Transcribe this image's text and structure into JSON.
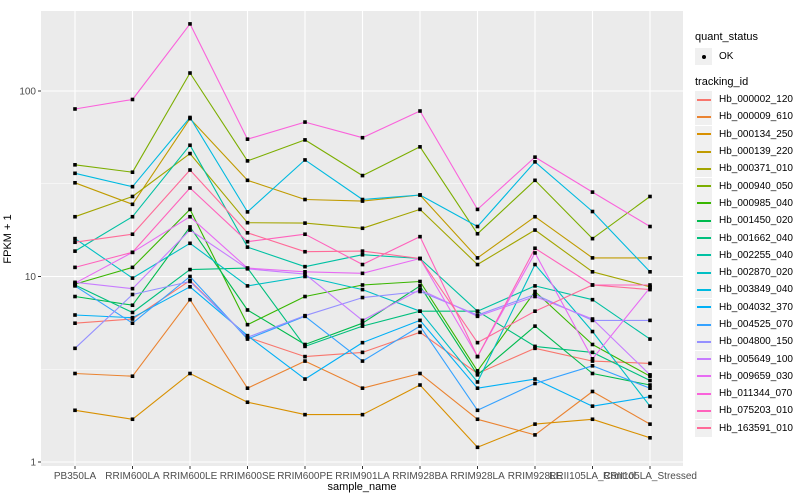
{
  "chart_data": {
    "type": "line",
    "title": "",
    "xlabel": "sample_name",
    "ylabel": "FPKM + 1",
    "y_scale": "log10",
    "y_major_ticks": [
      1,
      10,
      100
    ],
    "y_minor_gridlines": [
      3.162,
      31.62
    ],
    "ylim": [
      0.95,
      270
    ],
    "grid": "on",
    "legend_position": "right",
    "categories": [
      "PB350LA",
      "RRIM600LA",
      "RRIM600LE",
      "RRIM600SE",
      "RRIM600PE",
      "RRIM901LA",
      "RRIM928BA",
      "RRIM928LA",
      "RRIM928LE",
      "RRII105LA_Control",
      "RRII105LA_Stressed"
    ],
    "point_shape": "filled-black-dot",
    "series": [
      {
        "name": "Hb_000002_120",
        "color": "#F8766D",
        "values": [
          5.6,
          5.9,
          9.5,
          4.7,
          3.7,
          3.9,
          5.0,
          3.0,
          4.1,
          3.5,
          3.4
        ]
      },
      {
        "name": "Hb_000009_610",
        "color": "#EA8331",
        "values": [
          3.0,
          2.9,
          7.5,
          2.5,
          3.5,
          2.5,
          3.0,
          1.7,
          1.4,
          2.4,
          1.6
        ]
      },
      {
        "name": "Hb_000134_250",
        "color": "#D89000",
        "values": [
          1.9,
          1.7,
          3.0,
          2.1,
          1.8,
          1.8,
          2.6,
          1.2,
          1.6,
          1.7,
          1.35
        ]
      },
      {
        "name": "Hb_000139_220",
        "color": "#C09B00",
        "values": [
          32,
          24.5,
          71,
          33,
          26,
          25.5,
          27.5,
          12.6,
          21,
          12.6,
          12.6
        ]
      },
      {
        "name": "Hb_000371_010",
        "color": "#A3A500",
        "values": [
          21,
          27,
          46,
          19.5,
          19.4,
          18.2,
          23,
          11.6,
          17.8,
          10.6,
          8.8
        ]
      },
      {
        "name": "Hb_000940_050",
        "color": "#7CAE00",
        "values": [
          40,
          36.5,
          125,
          42,
          54.5,
          35,
          50,
          17,
          33,
          16,
          27
        ]
      },
      {
        "name": "Hb_000985_040",
        "color": "#39B600",
        "values": [
          9.1,
          11.2,
          23,
          5.5,
          7.8,
          9.0,
          9.4,
          3.1,
          8.3,
          4.3,
          2.9
        ]
      },
      {
        "name": "Hb_001450_020",
        "color": "#00BB4E",
        "values": [
          7.8,
          7.0,
          18.5,
          6.6,
          4.3,
          5.6,
          8.9,
          2.95,
          5.4,
          3.0,
          2.6
        ]
      },
      {
        "name": "Hb_001662_040",
        "color": "#00BF7D",
        "values": [
          9.0,
          6.4,
          10.9,
          11.1,
          4.2,
          5.4,
          6.5,
          6.5,
          4.2,
          3.9,
          2.75
        ]
      },
      {
        "name": "Hb_002255_040",
        "color": "#00C1A3",
        "values": [
          13.7,
          21,
          51,
          14.4,
          11.3,
          13.1,
          12.5,
          6.5,
          8.9,
          7.5,
          4.6
        ]
      },
      {
        "name": "Hb_002870_020",
        "color": "#00BFC4",
        "values": [
          16,
          9.8,
          15.1,
          8.9,
          10.0,
          8.5,
          6.5,
          2.7,
          11.6,
          5.05,
          2.0
        ]
      },
      {
        "name": "Hb_003849_040",
        "color": "#00BAE0",
        "values": [
          36,
          30.5,
          72,
          22.3,
          42.5,
          26,
          27.5,
          18.6,
          41.5,
          22.4,
          10.6
        ]
      },
      {
        "name": "Hb_004032_370",
        "color": "#00B0F6",
        "values": [
          6.2,
          6.0,
          8.8,
          4.8,
          2.8,
          4.4,
          5.8,
          2.5,
          2.8,
          2.0,
          2.25
        ]
      },
      {
        "name": "Hb_004525_070",
        "color": "#35A2FF",
        "values": [
          8.9,
          5.6,
          10.0,
          4.6,
          6.1,
          3.5,
          5.4,
          1.9,
          2.65,
          3.3,
          2.5
        ]
      },
      {
        "name": "Hb_004800_150",
        "color": "#9590FF",
        "values": [
          4.1,
          8.0,
          9.4,
          4.7,
          6.15,
          7.7,
          8.3,
          6.2,
          8.0,
          5.8,
          5.8
        ]
      },
      {
        "name": "Hb_005649_100",
        "color": "#C77CFF",
        "values": [
          9.3,
          8.6,
          17.8,
          11.0,
          10.3,
          5.8,
          8.5,
          6.1,
          7.8,
          5.9,
          2.95
        ]
      },
      {
        "name": "Hb_009659_030",
        "color": "#E76BF3",
        "values": [
          9.2,
          13.5,
          21,
          11.1,
          10.6,
          10.4,
          12.5,
          3.7,
          13.4,
          3.6,
          8.7
        ]
      },
      {
        "name": "Hb_011344_070",
        "color": "#FA62DB",
        "values": [
          80,
          90,
          230,
          55,
          68,
          56,
          78,
          23,
          44,
          28.5,
          18.6
        ]
      },
      {
        "name": "Hb_075203_010",
        "color": "#FF62BC",
        "values": [
          11.2,
          13.5,
          30,
          15.4,
          16.9,
          11.6,
          16.4,
          3.7,
          14.2,
          9.0,
          9.0
        ]
      },
      {
        "name": "Hb_163591_010",
        "color": "#FF6A98",
        "values": [
          15.3,
          16.9,
          37.5,
          17.2,
          13.6,
          13.7,
          12.5,
          4.4,
          6.5,
          9.0,
          8.5
        ]
      }
    ]
  },
  "legend": {
    "quant_status_title": "quant_status",
    "quant_status_items": [
      {
        "label": "OK",
        "color": "#000000"
      }
    ],
    "tracking_title": "tracking_id"
  },
  "axes": {
    "x_title": "sample_name",
    "y_title": "FPKM + 1",
    "y_tick_labels": [
      "100",
      "10",
      "1"
    ]
  },
  "theme": {
    "panel_bg": "#EBEBEB",
    "grid_color": "#FFFFFF",
    "tick_label_color": "#4D4D4D",
    "tick_mark_color": "#333333",
    "legend_key_bg": "#F0F0F0",
    "point_color": "#000000"
  }
}
